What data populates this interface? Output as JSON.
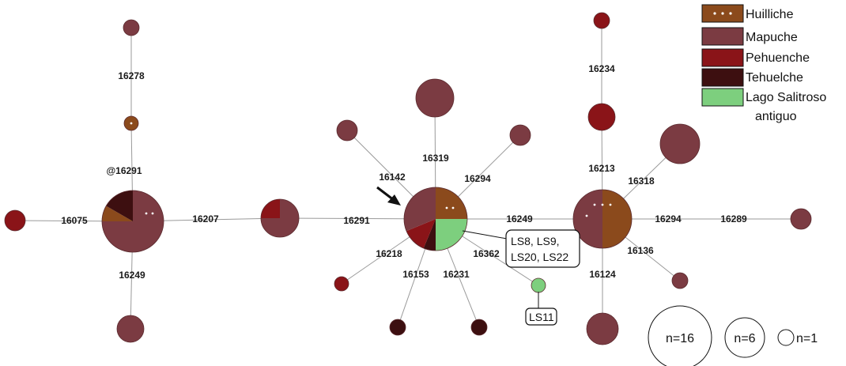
{
  "colors": {
    "Huilliche": "#8b4a1c",
    "Mapuche": "#7b3b42",
    "Pehuenche": "#8a1418",
    "Tehuelche": "#3d0f10",
    "Lago Salitroso": "#7dcf7e"
  },
  "legend": {
    "items": [
      {
        "key": "Huilliche",
        "label": "Huilliche",
        "dots": true
      },
      {
        "key": "Mapuche",
        "label": "Mapuche"
      },
      {
        "key": "Pehuenche",
        "label": "Pehuenche"
      },
      {
        "key": "Tehuelche",
        "label": "Tehuelche"
      },
      {
        "key": "Lago Salitroso",
        "label": "Lago Salitroso",
        "label2": "antiguo"
      }
    ]
  },
  "mutation_labels": {
    "m16278": "16278",
    "m16291_top": "@16291",
    "m16075": "16075",
    "m16207": "16207",
    "m16249_left": "16249",
    "m16291_mid": "16291",
    "m16142": "16142",
    "m16319": "16319",
    "m16294_mid": "16294",
    "m16218": "16218",
    "m16153": "16153",
    "m16231": "16231",
    "m16362": "16362",
    "m16249_mid": "16249",
    "m16234": "16234",
    "m16213": "16213",
    "m16318": "16318",
    "m16294_right": "16294",
    "m16289": "16289",
    "m16136": "16136",
    "m16124": "16124"
  },
  "sample_tags": {
    "main": [
      "LS8, LS9,",
      "LS20, LS22"
    ],
    "ls11": "LS11"
  },
  "size_key": [
    {
      "label": "n=16"
    },
    {
      "label": "n=6"
    },
    {
      "label": "n=1"
    }
  ]
}
